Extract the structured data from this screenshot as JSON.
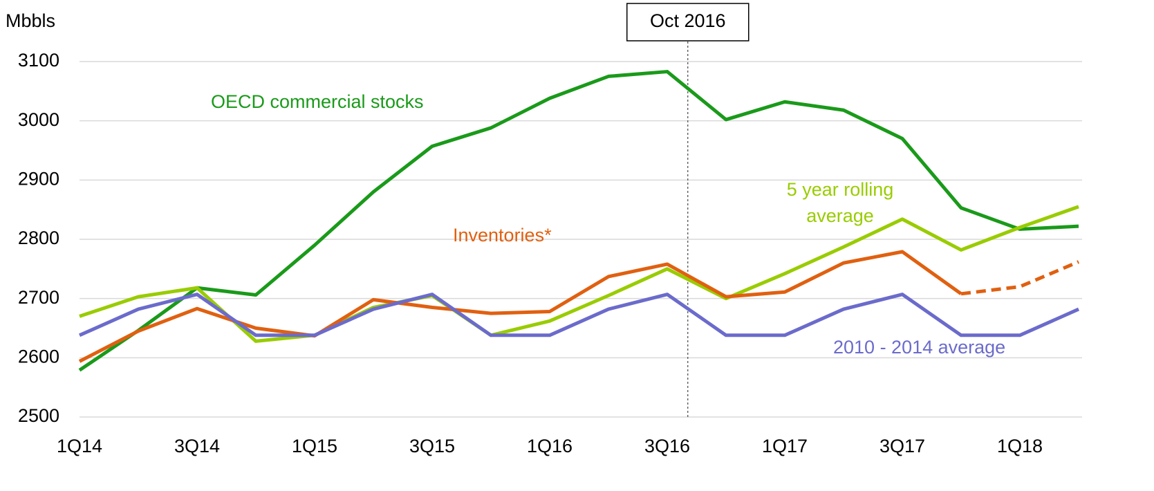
{
  "chart_data": {
    "type": "line",
    "y_label": "Mbbls",
    "categories": [
      "1Q14",
      null,
      "3Q14",
      null,
      "1Q15",
      null,
      "3Q15",
      null,
      "1Q16",
      null,
      "3Q16",
      null,
      "1Q17",
      null,
      "3Q17",
      null,
      "1Q18",
      null
    ],
    "series": [
      {
        "name": "OECD commercial stocks",
        "color": "#1a9a1a",
        "values": [
          2579,
          2646,
          2718,
          2706,
          2790,
          2880,
          2957,
          2988,
          3038,
          3075,
          3083,
          3002,
          3032,
          3018,
          2970,
          2853,
          2817,
          2822
        ]
      },
      {
        "name": "5 year rolling average",
        "color": "#99cc00",
        "values": [
          2670,
          2703,
          2718,
          2628,
          2638,
          2685,
          2705,
          2638,
          2662,
          2705,
          2750,
          2700,
          2742,
          2787,
          2834,
          2782,
          2820,
          2855
        ]
      },
      {
        "name": "Inventories*",
        "color": "#e06010",
        "dashed_from": 15,
        "values": [
          2594,
          2645,
          2683,
          2650,
          2637,
          2698,
          2685,
          2675,
          2678,
          2737,
          2758,
          2703,
          2711,
          2760,
          2779,
          2708,
          2720,
          2762
        ]
      },
      {
        "name": "2010 - 2014 average",
        "color": "#6b6bcc",
        "values": [
          2638,
          2682,
          2707,
          2638,
          2638,
          2682,
          2707,
          2638,
          2638,
          2682,
          2707,
          2638,
          2638,
          2682,
          2707,
          2638,
          2638,
          2682
        ]
      }
    ],
    "annotation": {
      "label": "Oct 2016",
      "at": 10.35
    },
    "ylim": [
      2500,
      3100
    ],
    "yticks": [
      2500,
      2600,
      2700,
      2800,
      2900,
      3000,
      3100
    ],
    "grid": true
  }
}
